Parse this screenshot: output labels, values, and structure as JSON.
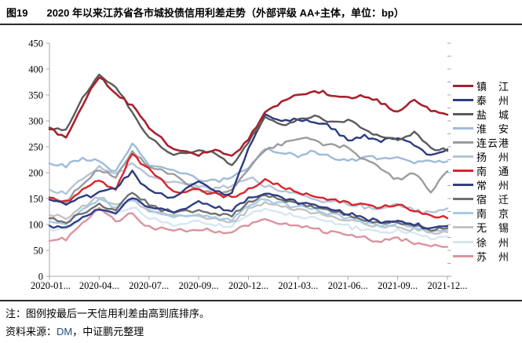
{
  "title": {
    "fig_label": "图19",
    "text": "2020 年以来江苏省各市城投债信用利差走势（外部评级 AA+主体，单位：bp）"
  },
  "notes": {
    "line1": "注：图例按最后一天信用利差由高到底排序。",
    "source_prefix": "资料来源：",
    "source_name": "DM",
    "source_suffix": "，中证鹏元整理"
  },
  "chart_data": {
    "type": "line",
    "title": "2020 年以来江苏省各市城投债信用利差走势（外部评级 AA+主体，单位：bp）",
    "unit": "bp",
    "grid": false,
    "legend_position": "right",
    "legend_note": "legend sorted by last-day credit spread, high to low",
    "ylim": [
      0,
      450
    ],
    "y_ticks": [
      450,
      400,
      350,
      300,
      250,
      200,
      150,
      100,
      50,
      0
    ],
    "x_tick_labels": [
      "2020-01...",
      "2020-04...",
      "2020-07...",
      "2020-09...",
      "2020-12...",
      "2021-03...",
      "2021-06...",
      "2021-09...",
      "2021-12..."
    ],
    "x_tick_month_index": [
      0,
      3,
      6,
      8,
      11,
      14,
      17,
      20,
      23
    ],
    "months": [
      "2020-01",
      "2020-02",
      "2020-03",
      "2020-04",
      "2020-05",
      "2020-06",
      "2020-07",
      "2020-08",
      "2020-09",
      "2020-10",
      "2020-11",
      "2020-12",
      "2021-01",
      "2021-02",
      "2021-03",
      "2021-04",
      "2021-05",
      "2021-06",
      "2021-07",
      "2021-08",
      "2021-09",
      "2021-10",
      "2021-11",
      "2021-12"
    ],
    "series": [
      {
        "id": "zhenjiang",
        "name": "镇江",
        "color": "#A6222E",
        "values": [
          285,
          268,
          332,
          385,
          352,
          328,
          288,
          246,
          236,
          242,
          230,
          265,
          318,
          338,
          350,
          358,
          352,
          345,
          350,
          335,
          318,
          342,
          320,
          312
        ]
      },
      {
        "id": "taizhou",
        "name": "泰州",
        "color": "#2C3B7E",
        "values": [
          148,
          140,
          152,
          162,
          172,
          200,
          165,
          152,
          186,
          164,
          158,
          246,
          312,
          298,
          305,
          296,
          288,
          262,
          272,
          262,
          268,
          252,
          233,
          245
        ]
      },
      {
        "id": "yancheng",
        "name": "盐城",
        "color": "#5B5B5B",
        "values": [
          288,
          280,
          345,
          388,
          362,
          318,
          266,
          232,
          244,
          236,
          214,
          258,
          306,
          292,
          300,
          308,
          295,
          303,
          282,
          270,
          262,
          278,
          247,
          242
        ]
      },
      {
        "id": "huaian",
        "name": "淮安",
        "color": "#9DBBD9",
        "values": [
          218,
          212,
          228,
          222,
          202,
          256,
          216,
          204,
          188,
          182,
          192,
          212,
          248,
          238,
          232,
          242,
          228,
          222,
          232,
          225,
          232,
          218,
          224,
          222
        ]
      },
      {
        "id": "lianyungang",
        "name": "连云港",
        "color": "#9C9C9C",
        "values": [
          150,
          146,
          180,
          206,
          192,
          238,
          212,
          196,
          166,
          158,
          168,
          206,
          246,
          256,
          266,
          262,
          252,
          248,
          226,
          210,
          186,
          200,
          161,
          203
        ]
      },
      {
        "id": "yangzhou",
        "name": "扬州",
        "color": "#B6C3D7",
        "values": [
          168,
          162,
          186,
          210,
          196,
          216,
          192,
          182,
          172,
          168,
          176,
          192,
          174,
          164,
          158,
          150,
          143,
          138,
          135,
          130,
          138,
          128,
          122,
          131
        ]
      },
      {
        "id": "nantong",
        "name": "南通",
        "color": "#D8252E",
        "values": [
          152,
          143,
          166,
          184,
          168,
          236,
          206,
          163,
          168,
          158,
          152,
          166,
          186,
          172,
          163,
          155,
          148,
          142,
          138,
          132,
          140,
          127,
          117,
          112
        ]
      },
      {
        "id": "changzhou",
        "name": "常州",
        "color": "#303F86",
        "values": [
          98,
          93,
          113,
          128,
          120,
          152,
          133,
          126,
          143,
          133,
          128,
          151,
          161,
          150,
          144,
          137,
          129,
          120,
          112,
          106,
          108,
          100,
          92,
          97
        ]
      },
      {
        "id": "suqian",
        "name": "宿迁",
        "color": "#707070",
        "values": [
          112,
          106,
          122,
          139,
          128,
          161,
          138,
          122,
          128,
          120,
          118,
          142,
          155,
          146,
          140,
          134,
          126,
          118,
          110,
          103,
          106,
          98,
          90,
          93
        ]
      },
      {
        "id": "nanjing",
        "name": "南京",
        "color": "#A7CBE5",
        "values": [
          105,
          100,
          128,
          147,
          132,
          150,
          128,
          115,
          120,
          112,
          110,
          135,
          148,
          140,
          134,
          128,
          120,
          112,
          104,
          98,
          102,
          94,
          86,
          89
        ]
      },
      {
        "id": "wuxi",
        "name": "无锡",
        "color": "#C3C3C3",
        "values": [
          118,
          110,
          136,
          152,
          138,
          148,
          126,
          118,
          115,
          108,
          105,
          128,
          142,
          134,
          128,
          122,
          115,
          108,
          100,
          94,
          97,
          90,
          83,
          85
        ]
      },
      {
        "id": "xuzhou",
        "name": "徐州",
        "color": "#D8E6F2",
        "values": [
          92,
          88,
          112,
          128,
          118,
          135,
          112,
          100,
          105,
          98,
          96,
          118,
          130,
          122,
          116,
          110,
          104,
          97,
          90,
          85,
          88,
          82,
          75,
          77
        ]
      },
      {
        "id": "suzhou",
        "name": "苏州",
        "color": "#DA949E",
        "values": [
          68,
          72,
          105,
          133,
          108,
          120,
          95,
          88,
          92,
          86,
          84,
          100,
          110,
          102,
          96,
          91,
          85,
          79,
          74,
          68,
          72,
          66,
          58,
          57
        ]
      }
    ]
  }
}
